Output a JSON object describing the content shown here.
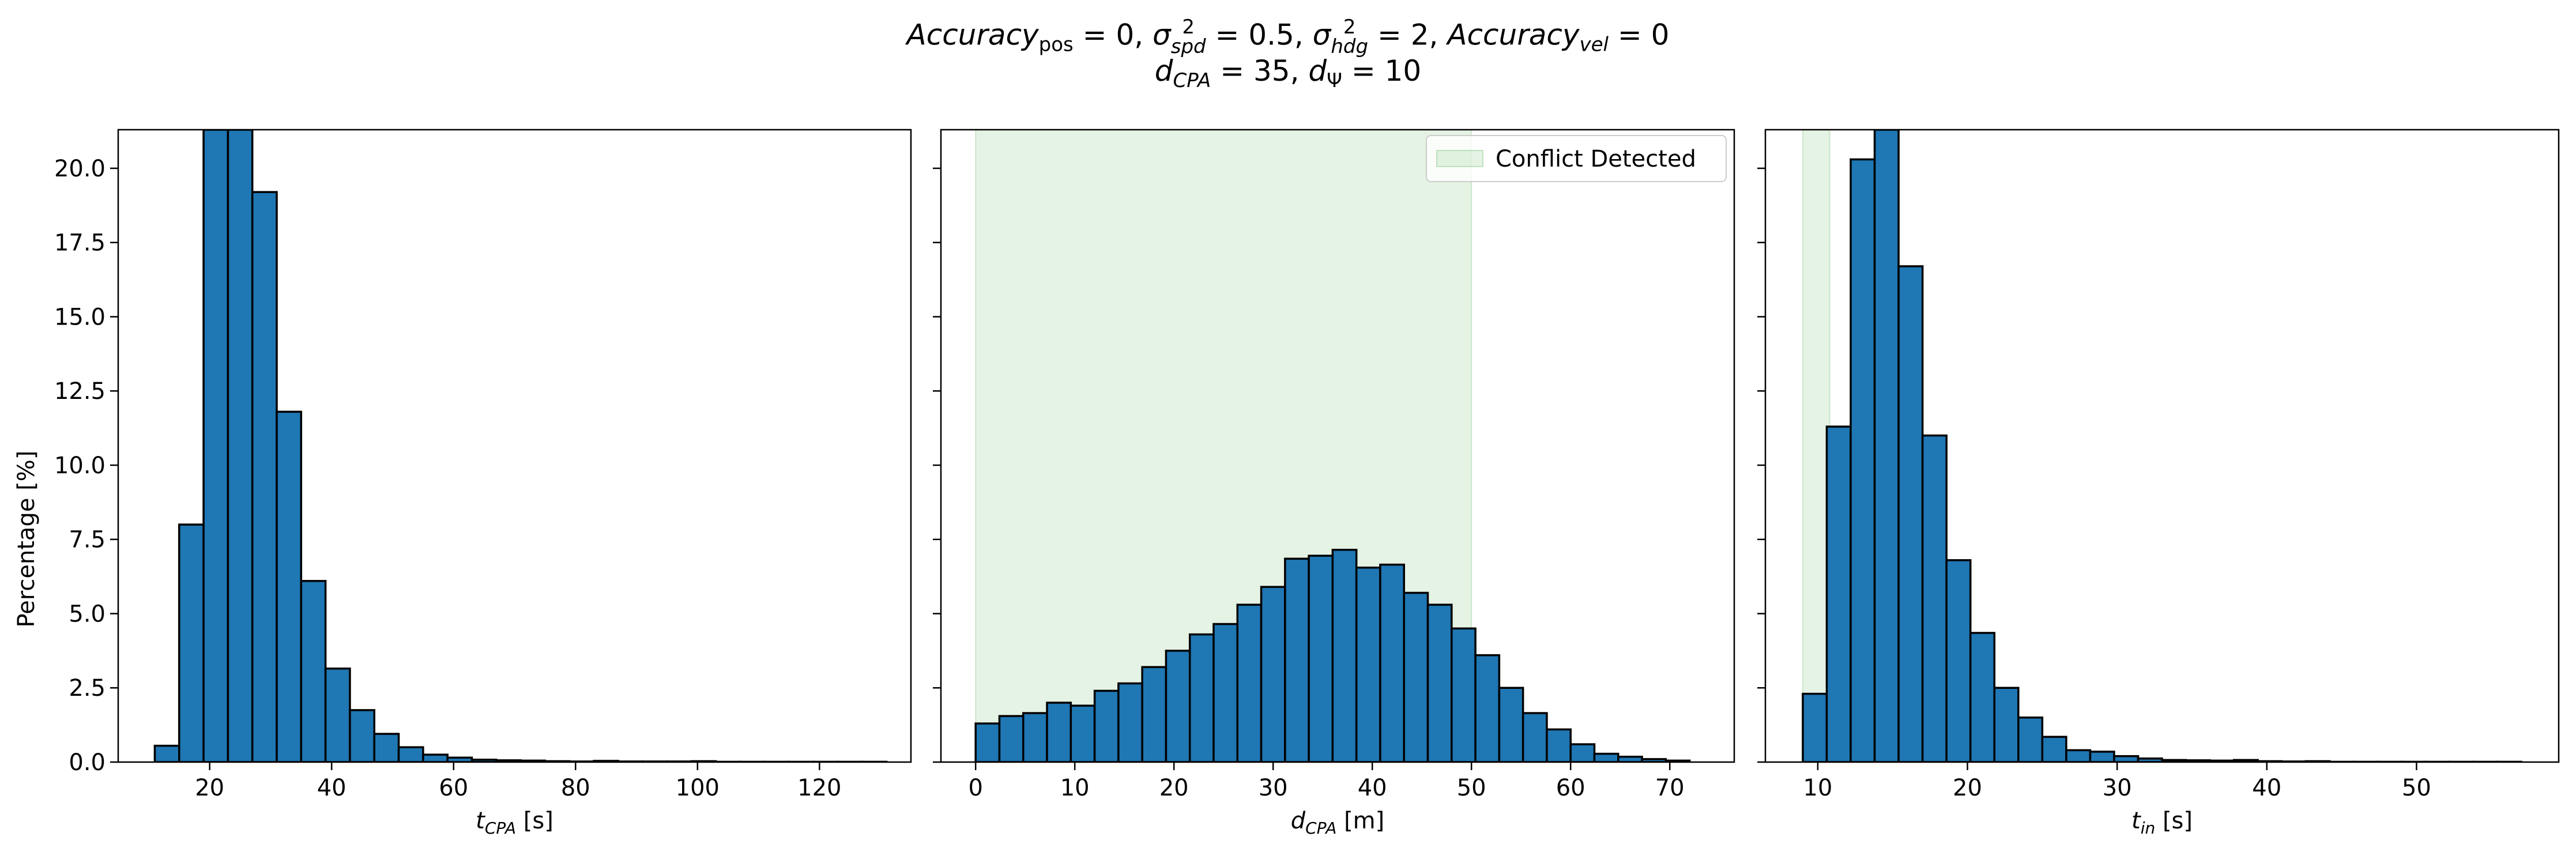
{
  "title": {
    "line1_parts": [
      "Accuracy",
      "pos",
      " = 0, ",
      "σ",
      "2",
      "spd",
      " = 0.5, ",
      "σ",
      "2",
      "hdg",
      " = 2, ",
      "Accuracy",
      "vel",
      " = 0"
    ],
    "line2_parts": [
      "d",
      "CPA",
      " = 35, ",
      "d",
      "Ψ",
      " = 10"
    ]
  },
  "colors": {
    "bar_fill": "#1f77b4",
    "bar_edge": "#000000",
    "conflict_fill": "#2ca02c"
  },
  "chart_data": [
    {
      "type": "bar",
      "name": "tcpa-histogram",
      "xlabel_var": "t",
      "xlabel_sub": "CPA",
      "xlabel_unit": " [s]",
      "ylabel": "Percentage [%]",
      "xlim": [
        5,
        135
      ],
      "ylim": [
        0,
        21.3
      ],
      "xticks": [
        20,
        40,
        60,
        80,
        100,
        120
      ],
      "yticks": [
        0.0,
        2.5,
        5.0,
        7.5,
        10.0,
        12.5,
        15.0,
        17.5,
        20.0
      ],
      "bin_start": 11,
      "bin_width": 4,
      "values": [
        0.55,
        8.0,
        21.3,
        21.3,
        19.2,
        11.8,
        6.1,
        3.15,
        1.75,
        0.95,
        0.5,
        0.25,
        0.15,
        0.08,
        0.06,
        0.05,
        0.03,
        0.02,
        0.04,
        0.02,
        0.02,
        0.02,
        0.03,
        0.01,
        0.01,
        0.01,
        0.01,
        0.01,
        0.01,
        0.01
      ],
      "conflict_region": null,
      "legend": null
    },
    {
      "type": "bar",
      "name": "dcpa-histogram",
      "xlabel_var": "d",
      "xlabel_sub": "CPA",
      "xlabel_unit": " [m]",
      "ylabel": "",
      "xlim": [
        -3.5,
        76.5
      ],
      "ylim": [
        0,
        21.3
      ],
      "xticks": [
        0,
        10,
        20,
        30,
        40,
        50,
        60,
        70
      ],
      "yticks": [
        0.0,
        2.5,
        5.0,
        7.5,
        10.0,
        12.5,
        15.0,
        17.5,
        20.0
      ],
      "bin_start": 0,
      "bin_width": 2.4,
      "values": [
        1.3,
        1.55,
        1.65,
        2.0,
        1.9,
        2.4,
        2.65,
        3.2,
        3.75,
        4.3,
        4.65,
        5.3,
        5.9,
        6.85,
        6.95,
        7.15,
        6.55,
        6.65,
        5.7,
        5.3,
        4.5,
        3.6,
        2.5,
        1.65,
        1.1,
        0.6,
        0.28,
        0.18,
        0.1,
        0.05
      ],
      "conflict_region": [
        0,
        50
      ],
      "legend": {
        "label": "Conflict Detected",
        "placement": "top-right"
      }
    },
    {
      "type": "bar",
      "name": "tin-histogram",
      "xlabel_var": "t",
      "xlabel_sub": "in",
      "xlabel_unit": " [s]",
      "ylabel": "",
      "xlim": [
        6.5,
        59.5
      ],
      "ylim": [
        0,
        21.3
      ],
      "xticks": [
        10,
        20,
        30,
        40,
        50
      ],
      "yticks": [
        0.0,
        2.5,
        5.0,
        7.5,
        10.0,
        12.5,
        15.0,
        17.5,
        20.0
      ],
      "bin_start": 9,
      "bin_width": 1.6,
      "values": [
        2.3,
        11.3,
        20.3,
        21.3,
        16.7,
        11.0,
        6.8,
        4.35,
        2.5,
        1.5,
        0.85,
        0.4,
        0.35,
        0.2,
        0.12,
        0.07,
        0.06,
        0.05,
        0.07,
        0.03,
        0.02,
        0.03,
        0.01,
        0.01,
        0.01,
        0.01,
        0.01,
        0.01,
        0.01,
        0.01
      ],
      "conflict_region": [
        9,
        10.8
      ],
      "legend": null
    }
  ]
}
